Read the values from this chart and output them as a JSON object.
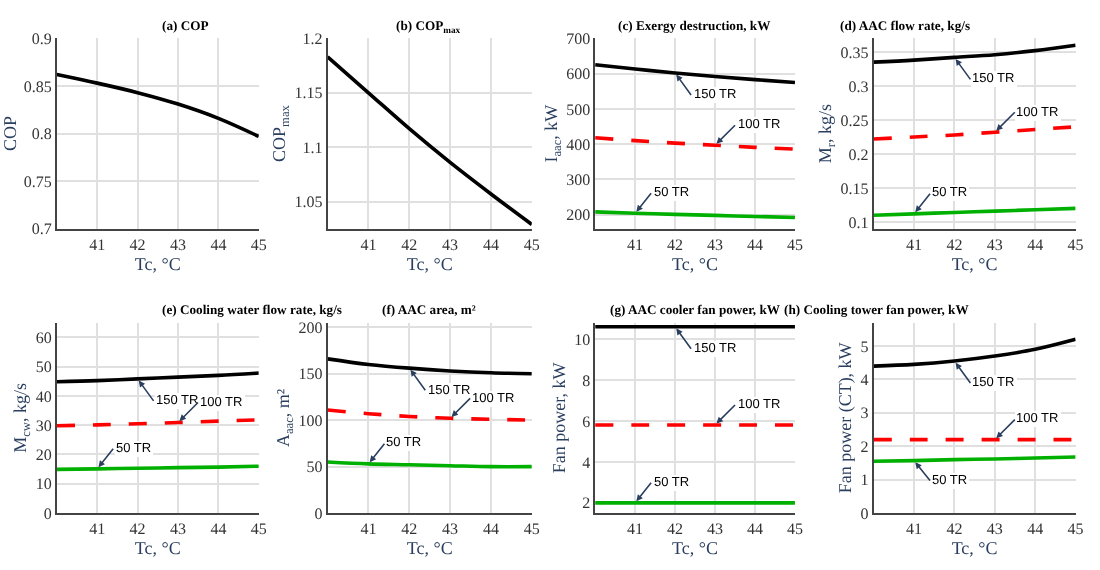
{
  "chart_data": [
    {
      "type": "line",
      "title": "(a) COP",
      "xlabel": "Tc, °C",
      "ylabel": "COP",
      "x": [
        40,
        41,
        42,
        43,
        44,
        45
      ],
      "xlim": [
        40,
        45
      ],
      "xticks": [
        41,
        42,
        43,
        44,
        45
      ],
      "ylim": [
        0.7,
        0.9
      ],
      "yticks": [
        0.7,
        0.75,
        0.8,
        0.85,
        0.9
      ],
      "grid": true,
      "series": [
        {
          "color": "#000000",
          "values": [
            0.862,
            0.853,
            0.843,
            0.831,
            0.816,
            0.797
          ]
        }
      ]
    },
    {
      "type": "line",
      "title": "(b) COP$_{max}$",
      "xlabel": "Tc, °C",
      "ylabel": "COP$_{max}$",
      "x": [
        40,
        41,
        42,
        43,
        44,
        45
      ],
      "xlim": [
        40,
        45
      ],
      "xticks": [
        41,
        42,
        43,
        44,
        45
      ],
      "ylim": [
        1.025,
        1.2
      ],
      "yticks": [
        1.05,
        1.1,
        1.15,
        1.2
      ],
      "grid": true,
      "series": [
        {
          "color": "#000000",
          "values": [
            1.183,
            1.15,
            1.117,
            1.086,
            1.057,
            1.029
          ]
        }
      ]
    },
    {
      "type": "line",
      "title": "(c) Exergy destruction, kW",
      "xlabel": "Tc, °C",
      "ylabel": "I$_{aac}$, kW",
      "x": [
        40,
        41,
        42,
        43,
        44,
        45
      ],
      "xlim": [
        40,
        45
      ],
      "xticks": [
        41,
        42,
        43,
        44,
        45
      ],
      "ylim": [
        160,
        700
      ],
      "yticks": [
        200,
        300,
        400,
        500,
        600,
        700
      ],
      "grid": true,
      "series": [
        {
          "name": "150 TR",
          "color": "#000000",
          "values": [
            625,
            613,
            602,
            592,
            583,
            575
          ]
        },
        {
          "name": "100 TR",
          "color": "#ff0000",
          "line_style": "dashed",
          "values": [
            418,
            410,
            403,
            397,
            391,
            386
          ]
        },
        {
          "name": "50 TR",
          "color": "#00b000",
          "values": [
            208,
            204,
            201,
            198,
            195,
            192
          ]
        }
      ]
    },
    {
      "type": "line",
      "title": "(d) AAC flow rate, kg/s",
      "xlabel": "Tc, °C",
      "ylabel": "M$_{r}$, kg/s",
      "x": [
        40,
        41,
        42,
        43,
        44,
        45
      ],
      "xlim": [
        40,
        45
      ],
      "xticks": [
        41,
        42,
        43,
        44,
        45
      ],
      "ylim": [
        0.09,
        0.37
      ],
      "yticks": [
        0.1,
        0.15,
        0.2,
        0.25,
        0.3,
        0.35
      ],
      "grid": true,
      "series": [
        {
          "name": "150 TR",
          "color": "#000000",
          "values": [
            0.335,
            0.338,
            0.342,
            0.346,
            0.352,
            0.36
          ]
        },
        {
          "name": "100 TR",
          "color": "#ff0000",
          "line_style": "dashed",
          "values": [
            0.222,
            0.225,
            0.228,
            0.232,
            0.236,
            0.24
          ]
        },
        {
          "name": "50 TR",
          "color": "#00b000",
          "values": [
            0.11,
            0.112,
            0.114,
            0.116,
            0.118,
            0.12
          ]
        }
      ]
    },
    {
      "type": "line",
      "title": "(e) Cooling water flow rate, kg/s",
      "xlabel": "Tc, °C",
      "ylabel": "M$_{cw}$, kg/s",
      "x": [
        40,
        41,
        42,
        43,
        44,
        45
      ],
      "xlim": [
        40,
        45
      ],
      "xticks": [
        41,
        42,
        43,
        44,
        45
      ],
      "ylim": [
        0,
        65
      ],
      "yticks": [
        0,
        10,
        20,
        30,
        40,
        50,
        60
      ],
      "grid": true,
      "series": [
        {
          "name": "150 TR",
          "color": "#000000",
          "values": [
            44.8,
            45.2,
            45.8,
            46.4,
            47.0,
            47.8
          ]
        },
        {
          "name": "100 TR",
          "color": "#ff0000",
          "line_style": "dashed",
          "values": [
            29.8,
            30.1,
            30.5,
            30.9,
            31.4,
            31.8
          ]
        },
        {
          "name": "50 TR",
          "color": "#00b000",
          "values": [
            14.9,
            15.1,
            15.3,
            15.5,
            15.7,
            16.0
          ]
        }
      ]
    },
    {
      "type": "line",
      "title": "(f) AAC area, m²",
      "xlabel": "Tc, °C",
      "ylabel": "A$_{aac}$, m²",
      "x": [
        40,
        41,
        42,
        43,
        44,
        45
      ],
      "xlim": [
        40,
        45
      ],
      "xticks": [
        41,
        42,
        43,
        44,
        45
      ],
      "ylim": [
        0,
        205
      ],
      "yticks": [
        0,
        50,
        100,
        150,
        200
      ],
      "grid": true,
      "series": [
        {
          "name": "150 TR",
          "color": "#000000",
          "values": [
            166,
            160,
            156,
            153,
            151,
            150
          ]
        },
        {
          "name": "100 TR",
          "color": "#ff0000",
          "line_style": "dashed",
          "values": [
            111,
            107,
            104,
            102,
            101,
            100
          ]
        },
        {
          "name": "50 TR",
          "color": "#00b000",
          "values": [
            55,
            53,
            52,
            51,
            50,
            50
          ]
        }
      ]
    },
    {
      "type": "line",
      "title": "(g) AAC cooler fan power, kW",
      "xlabel": "Tc, °C",
      "ylabel": "Fan power, kW",
      "x": [
        40,
        41,
        42,
        43,
        44,
        45
      ],
      "xlim": [
        40,
        45
      ],
      "xticks": [
        41,
        42,
        43,
        44,
        45
      ],
      "ylim": [
        1.5,
        10.8
      ],
      "yticks": [
        2,
        4,
        6,
        8,
        10
      ],
      "grid": true,
      "series": [
        {
          "name": "150 TR",
          "color": "#000000",
          "values": [
            10.6,
            10.6,
            10.6,
            10.6,
            10.6,
            10.6
          ]
        },
        {
          "name": "100 TR",
          "color": "#ff0000",
          "line_style": "dashed",
          "values": [
            5.8,
            5.8,
            5.8,
            5.8,
            5.8,
            5.8
          ]
        },
        {
          "name": "50 TR",
          "color": "#00b000",
          "values": [
            2.0,
            2.0,
            2.0,
            2.0,
            2.0,
            2.0
          ]
        }
      ]
    },
    {
      "type": "line",
      "title": "(h) Cooling tower fan power, kW",
      "xlabel": "Tc, °C",
      "ylabel": "Fan power (CT), kW",
      "x": [
        40,
        41,
        42,
        43,
        44,
        45
      ],
      "xlim": [
        40,
        45
      ],
      "xticks": [
        41,
        42,
        43,
        44,
        45
      ],
      "ylim": [
        0,
        5.7
      ],
      "yticks": [
        0,
        1,
        2,
        3,
        4,
        5
      ],
      "grid": true,
      "series": [
        {
          "name": "150 TR",
          "color": "#000000",
          "values": [
            4.4,
            4.45,
            4.55,
            4.7,
            4.9,
            5.2
          ]
        },
        {
          "name": "100 TR",
          "color": "#ff0000",
          "line_style": "dashed",
          "values": [
            2.2,
            2.2,
            2.2,
            2.2,
            2.2,
            2.2
          ]
        },
        {
          "name": "50 TR",
          "color": "#00b000",
          "values": [
            1.55,
            1.57,
            1.6,
            1.62,
            1.65,
            1.68
          ]
        }
      ]
    }
  ]
}
